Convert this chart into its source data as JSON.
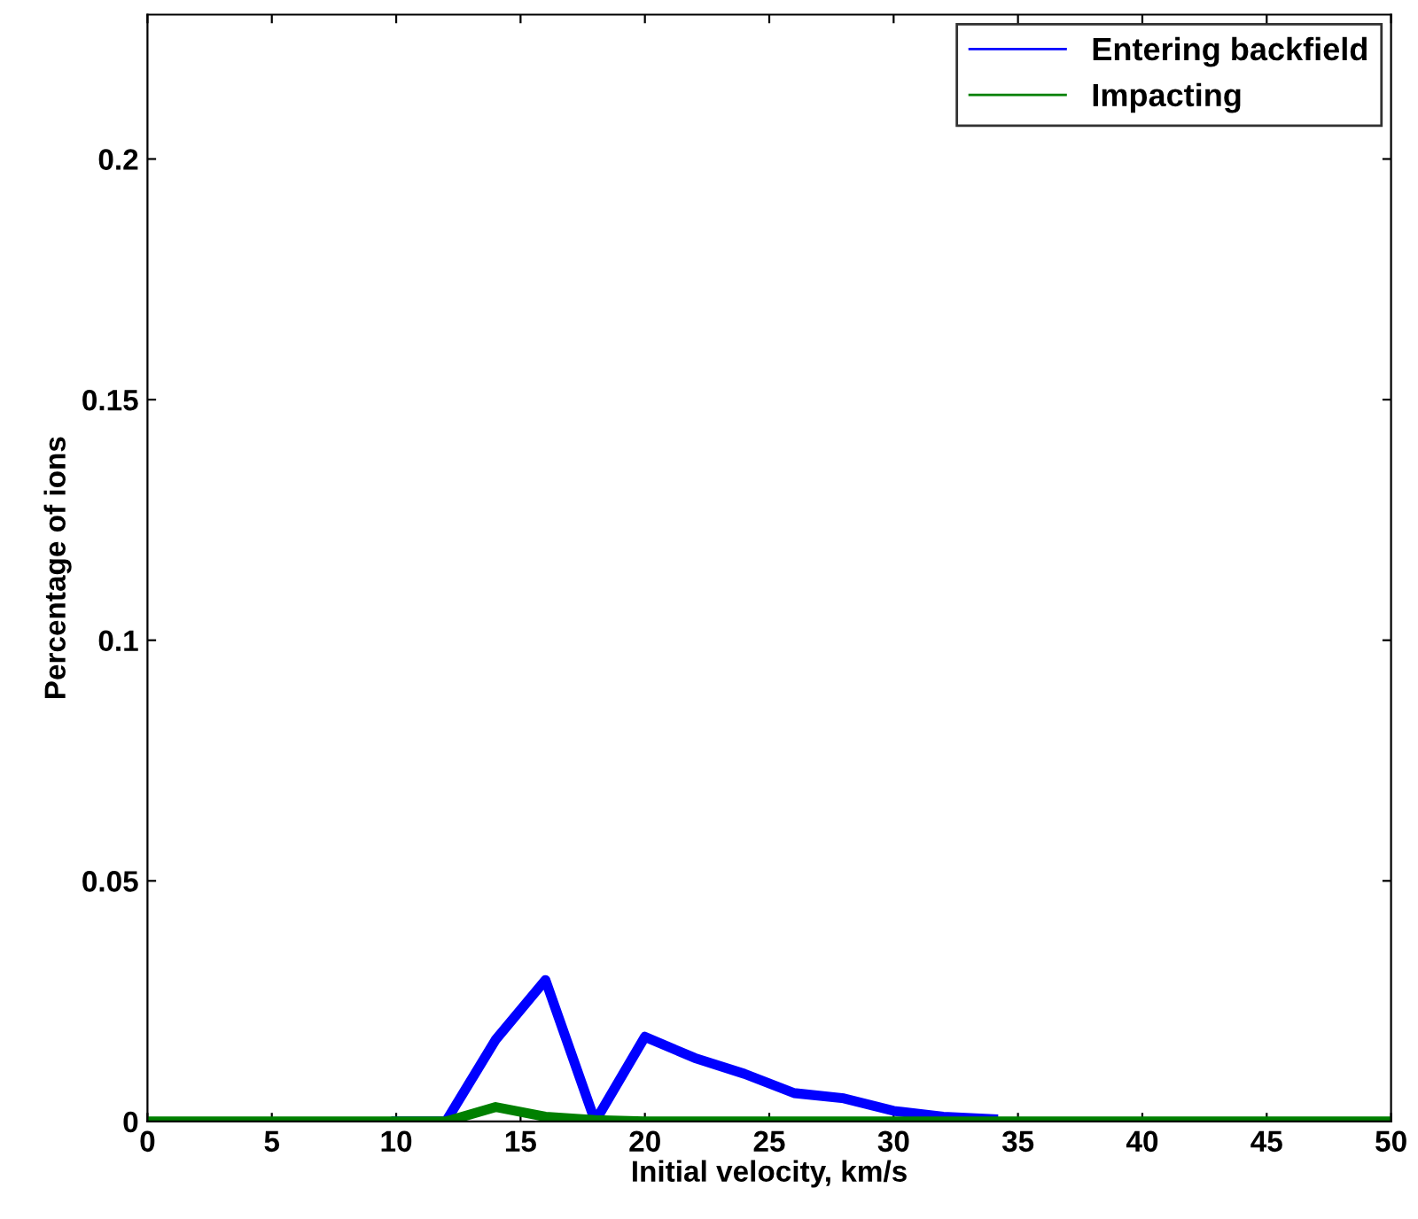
{
  "chart_data": {
    "type": "line",
    "xlabel": "Initial velocity, km/s",
    "ylabel": "Percentage of ions",
    "x": [
      0,
      2,
      4,
      6,
      8,
      10,
      12,
      14,
      16,
      18,
      20,
      22,
      24,
      26,
      28,
      30,
      32,
      34,
      36,
      38,
      40,
      42,
      44,
      46,
      48,
      50
    ],
    "series": [
      {
        "name": "Entering backfield",
        "color": "#0000ff",
        "values": [
          null,
          null,
          null,
          null,
          null,
          0,
          0,
          0.017,
          0.0294,
          0,
          0.0176,
          0.0132,
          0.0099,
          0.0059,
          0.0048,
          0.0022,
          0.001,
          0.0005,
          null,
          null,
          null,
          null,
          null,
          null,
          null,
          null
        ]
      },
      {
        "name": "Impacting",
        "color": "#008000",
        "values": [
          0,
          0,
          0,
          0,
          0,
          0,
          0,
          0.003,
          0.001,
          0.0003,
          0,
          0,
          0,
          0,
          0,
          0,
          0,
          0,
          0,
          0,
          0,
          0,
          0,
          0,
          0,
          0
        ]
      }
    ],
    "xlim": [
      0,
      50
    ],
    "xticks": [
      0,
      5,
      10,
      15,
      20,
      25,
      30,
      35,
      40,
      45,
      50
    ],
    "ylim": [
      0,
      0.23
    ],
    "yticks": [
      0,
      0.05,
      0.1,
      0.15,
      0.2
    ],
    "legend": "top right",
    "grid": false
  }
}
